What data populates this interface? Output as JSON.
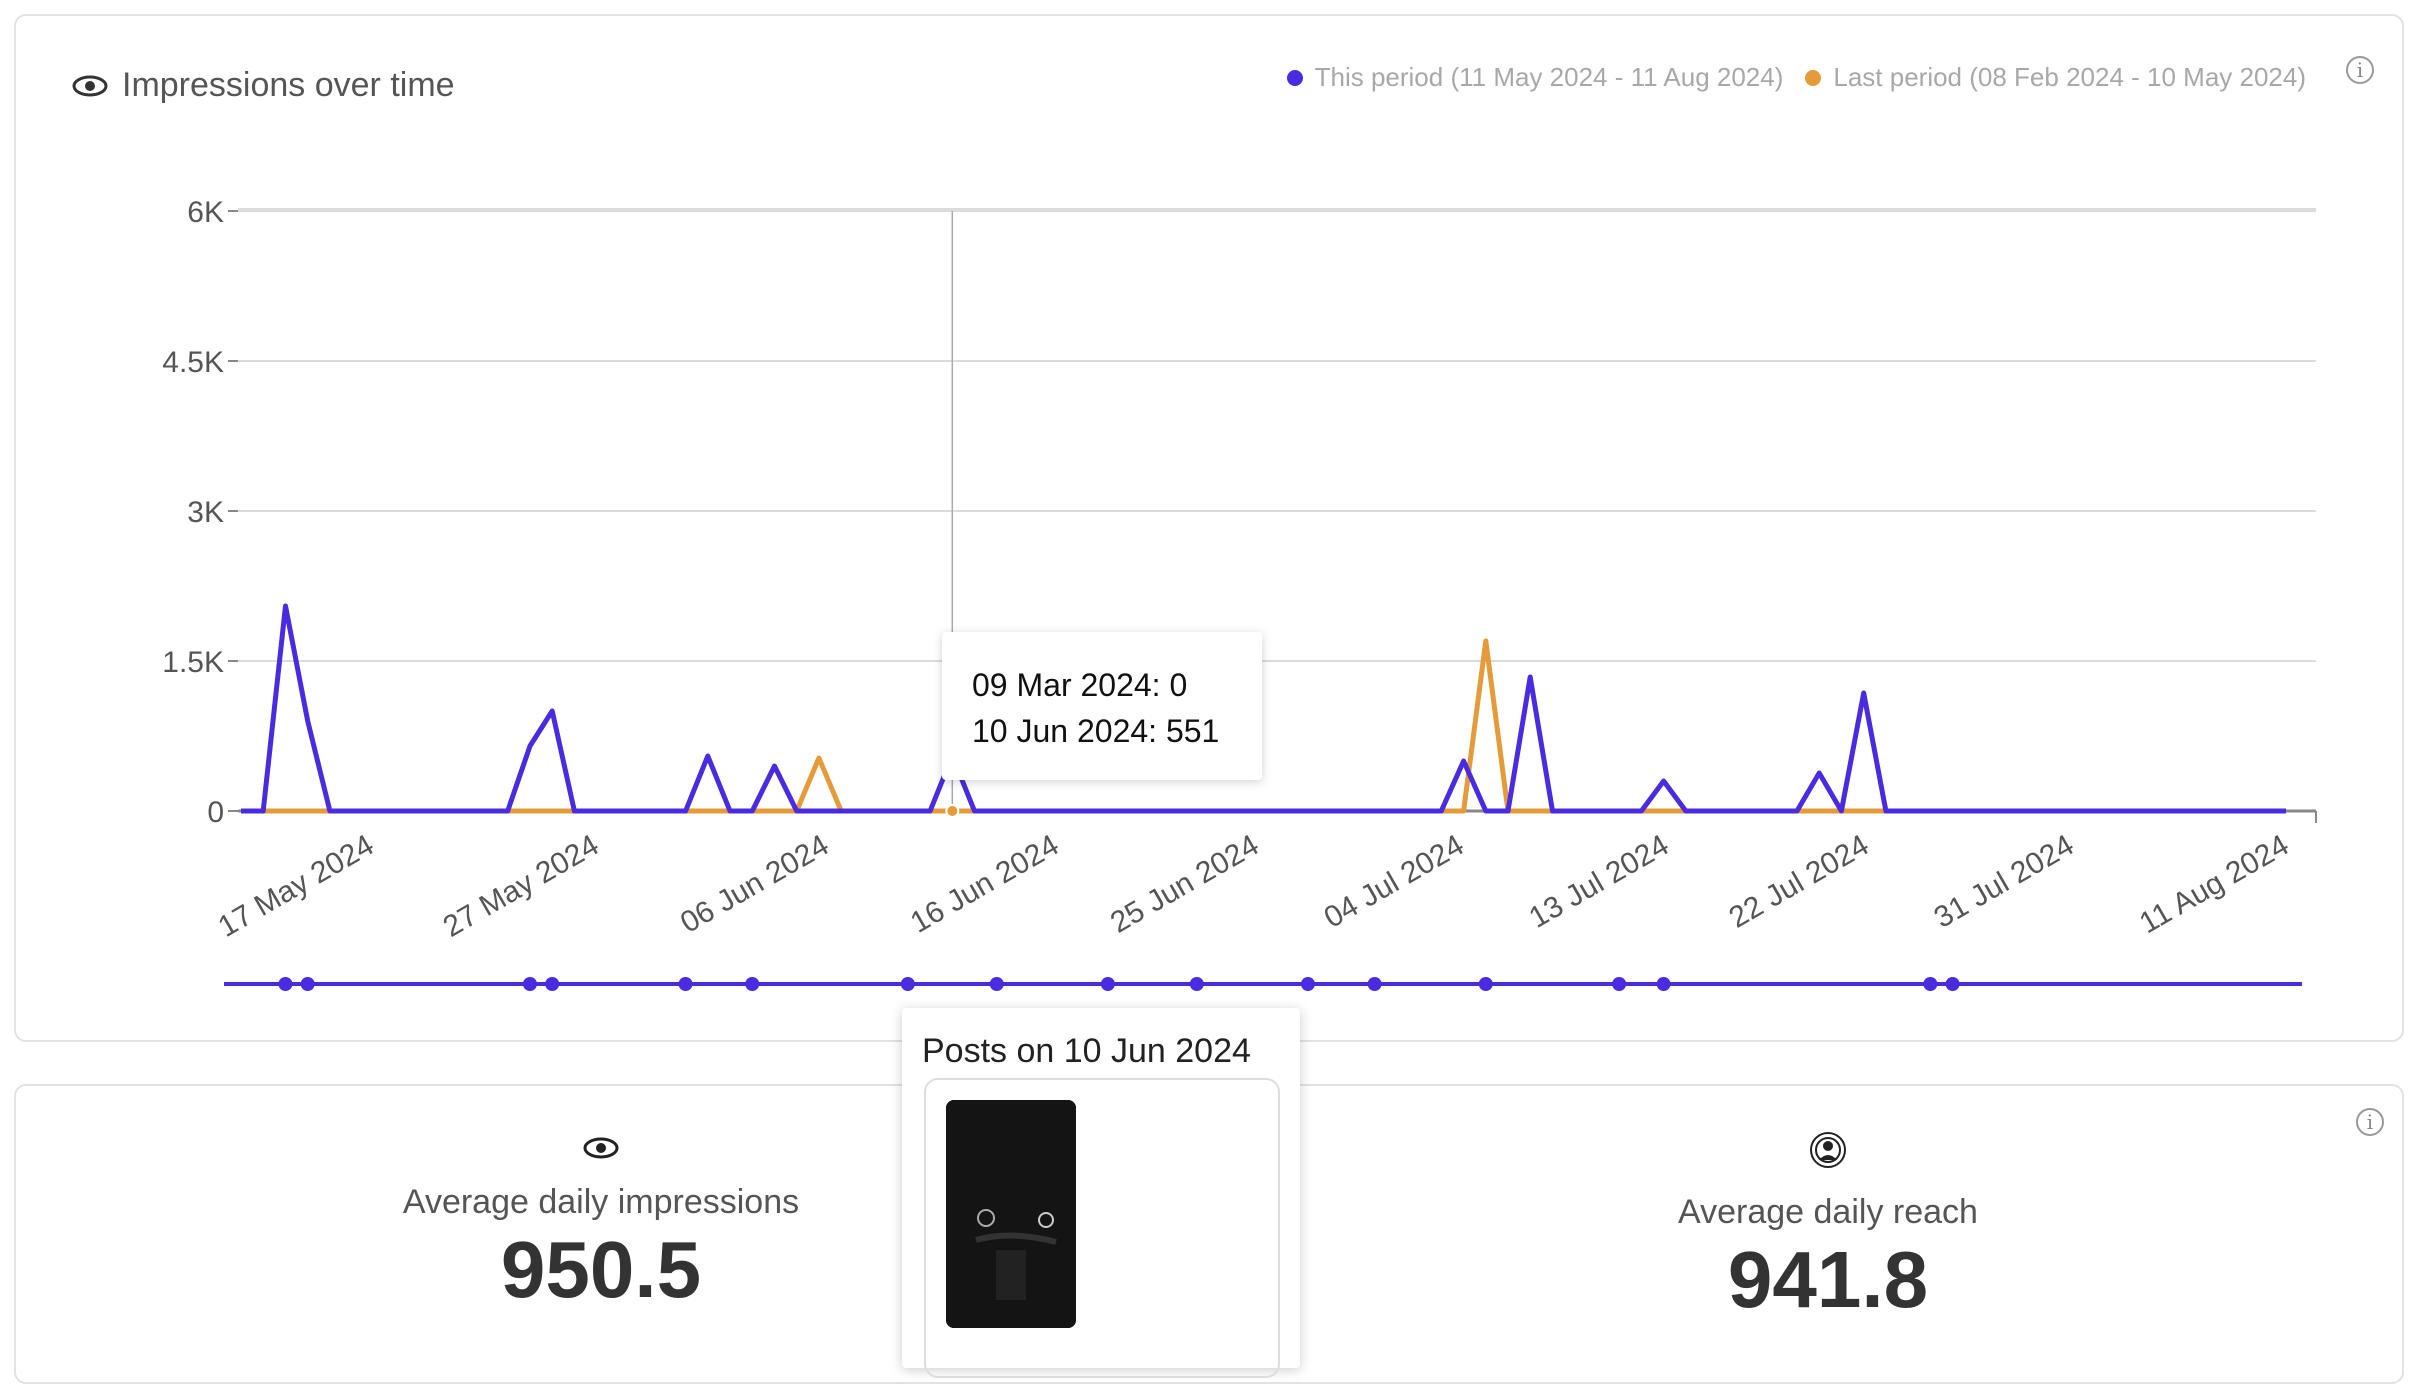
{
  "chart_card": {
    "title": "Impressions over time",
    "title_icon": "eye-icon",
    "legend": [
      {
        "label": "This period (11 May 2024 - 11 Aug 2024)",
        "color": "#4a2be0"
      },
      {
        "label": "Last period (08 Feb 2024 - 10 May 2024)",
        "color": "#e59b3a"
      }
    ],
    "info_icon": "info-icon"
  },
  "chart_data": {
    "type": "line",
    "x_tick_labels": [
      "17 May 2024",
      "27 May 2024",
      "06 Jun 2024",
      "16 Jun 2024",
      "25 Jun 2024",
      "04 Jul 2024",
      "13 Jul 2024",
      "22 Jul 2024",
      "31 Jul 2024",
      "11 Aug 2024"
    ],
    "y_tick_labels": [
      "0",
      "1.5K",
      "3K",
      "4.5K",
      "6K"
    ],
    "ylim": [
      0,
      6000
    ],
    "days": 93,
    "grid": true,
    "legend_position": "top-right",
    "series": [
      {
        "name": "This period (11 May 2024 - 11 Aug 2024)",
        "color": "#4a2be0",
        "values": [
          0,
          0,
          2050,
          900,
          0,
          0,
          0,
          0,
          0,
          0,
          0,
          0,
          0,
          650,
          1000,
          0,
          0,
          0,
          0,
          0,
          0,
          550,
          0,
          0,
          450,
          0,
          0,
          0,
          0,
          0,
          0,
          0,
          551,
          0,
          0,
          0,
          0,
          0,
          0,
          0,
          0,
          0,
          0,
          0,
          0,
          0,
          0,
          0,
          0,
          0,
          0,
          0,
          0,
          0,
          0,
          500,
          0,
          0,
          1340,
          0,
          0,
          0,
          0,
          0,
          300,
          0,
          0,
          0,
          0,
          0,
          0,
          380,
          0,
          1180,
          0,
          0,
          0,
          0,
          0,
          0,
          0,
          0,
          0,
          0,
          0,
          0,
          0,
          0,
          0,
          0,
          0,
          0,
          0
        ]
      },
      {
        "name": "Last period (08 Feb 2024 - 10 May 2024)",
        "color": "#e59b3a",
        "values": [
          0,
          0,
          0,
          0,
          0,
          0,
          0,
          0,
          0,
          0,
          0,
          0,
          0,
          0,
          0,
          0,
          0,
          0,
          0,
          0,
          0,
          0,
          0,
          0,
          0,
          0,
          530,
          0,
          0,
          0,
          0,
          0,
          0,
          0,
          0,
          0,
          0,
          0,
          0,
          0,
          0,
          0,
          0,
          0,
          0,
          0,
          0,
          0,
          0,
          0,
          0,
          0,
          0,
          0,
          0,
          0,
          1700,
          0,
          0,
          0,
          0,
          0,
          0,
          0,
          0,
          0,
          0,
          0,
          0,
          0,
          0,
          0,
          0,
          0,
          0,
          0,
          0,
          0,
          0,
          0,
          0,
          0,
          0,
          0,
          0,
          0,
          0,
          0,
          0,
          0,
          0,
          0,
          0
        ]
      }
    ],
    "post_markers_day_index": [
      2,
      3,
      13,
      14,
      20,
      23,
      30,
      34,
      39,
      43,
      48,
      51,
      56,
      62,
      64,
      76,
      77
    ]
  },
  "tooltip": {
    "line1": "09 Mar 2024: 0",
    "line2": "10 Jun 2024: 551"
  },
  "posts_popup": {
    "title": "Posts on 10 Jun 2024"
  },
  "stats": {
    "impressions": {
      "label": "Average daily impressions",
      "value": "950.5",
      "icon": "eye-icon"
    },
    "reach": {
      "label": "Average daily reach",
      "value": "941.8",
      "icon": "reach-icon"
    }
  }
}
